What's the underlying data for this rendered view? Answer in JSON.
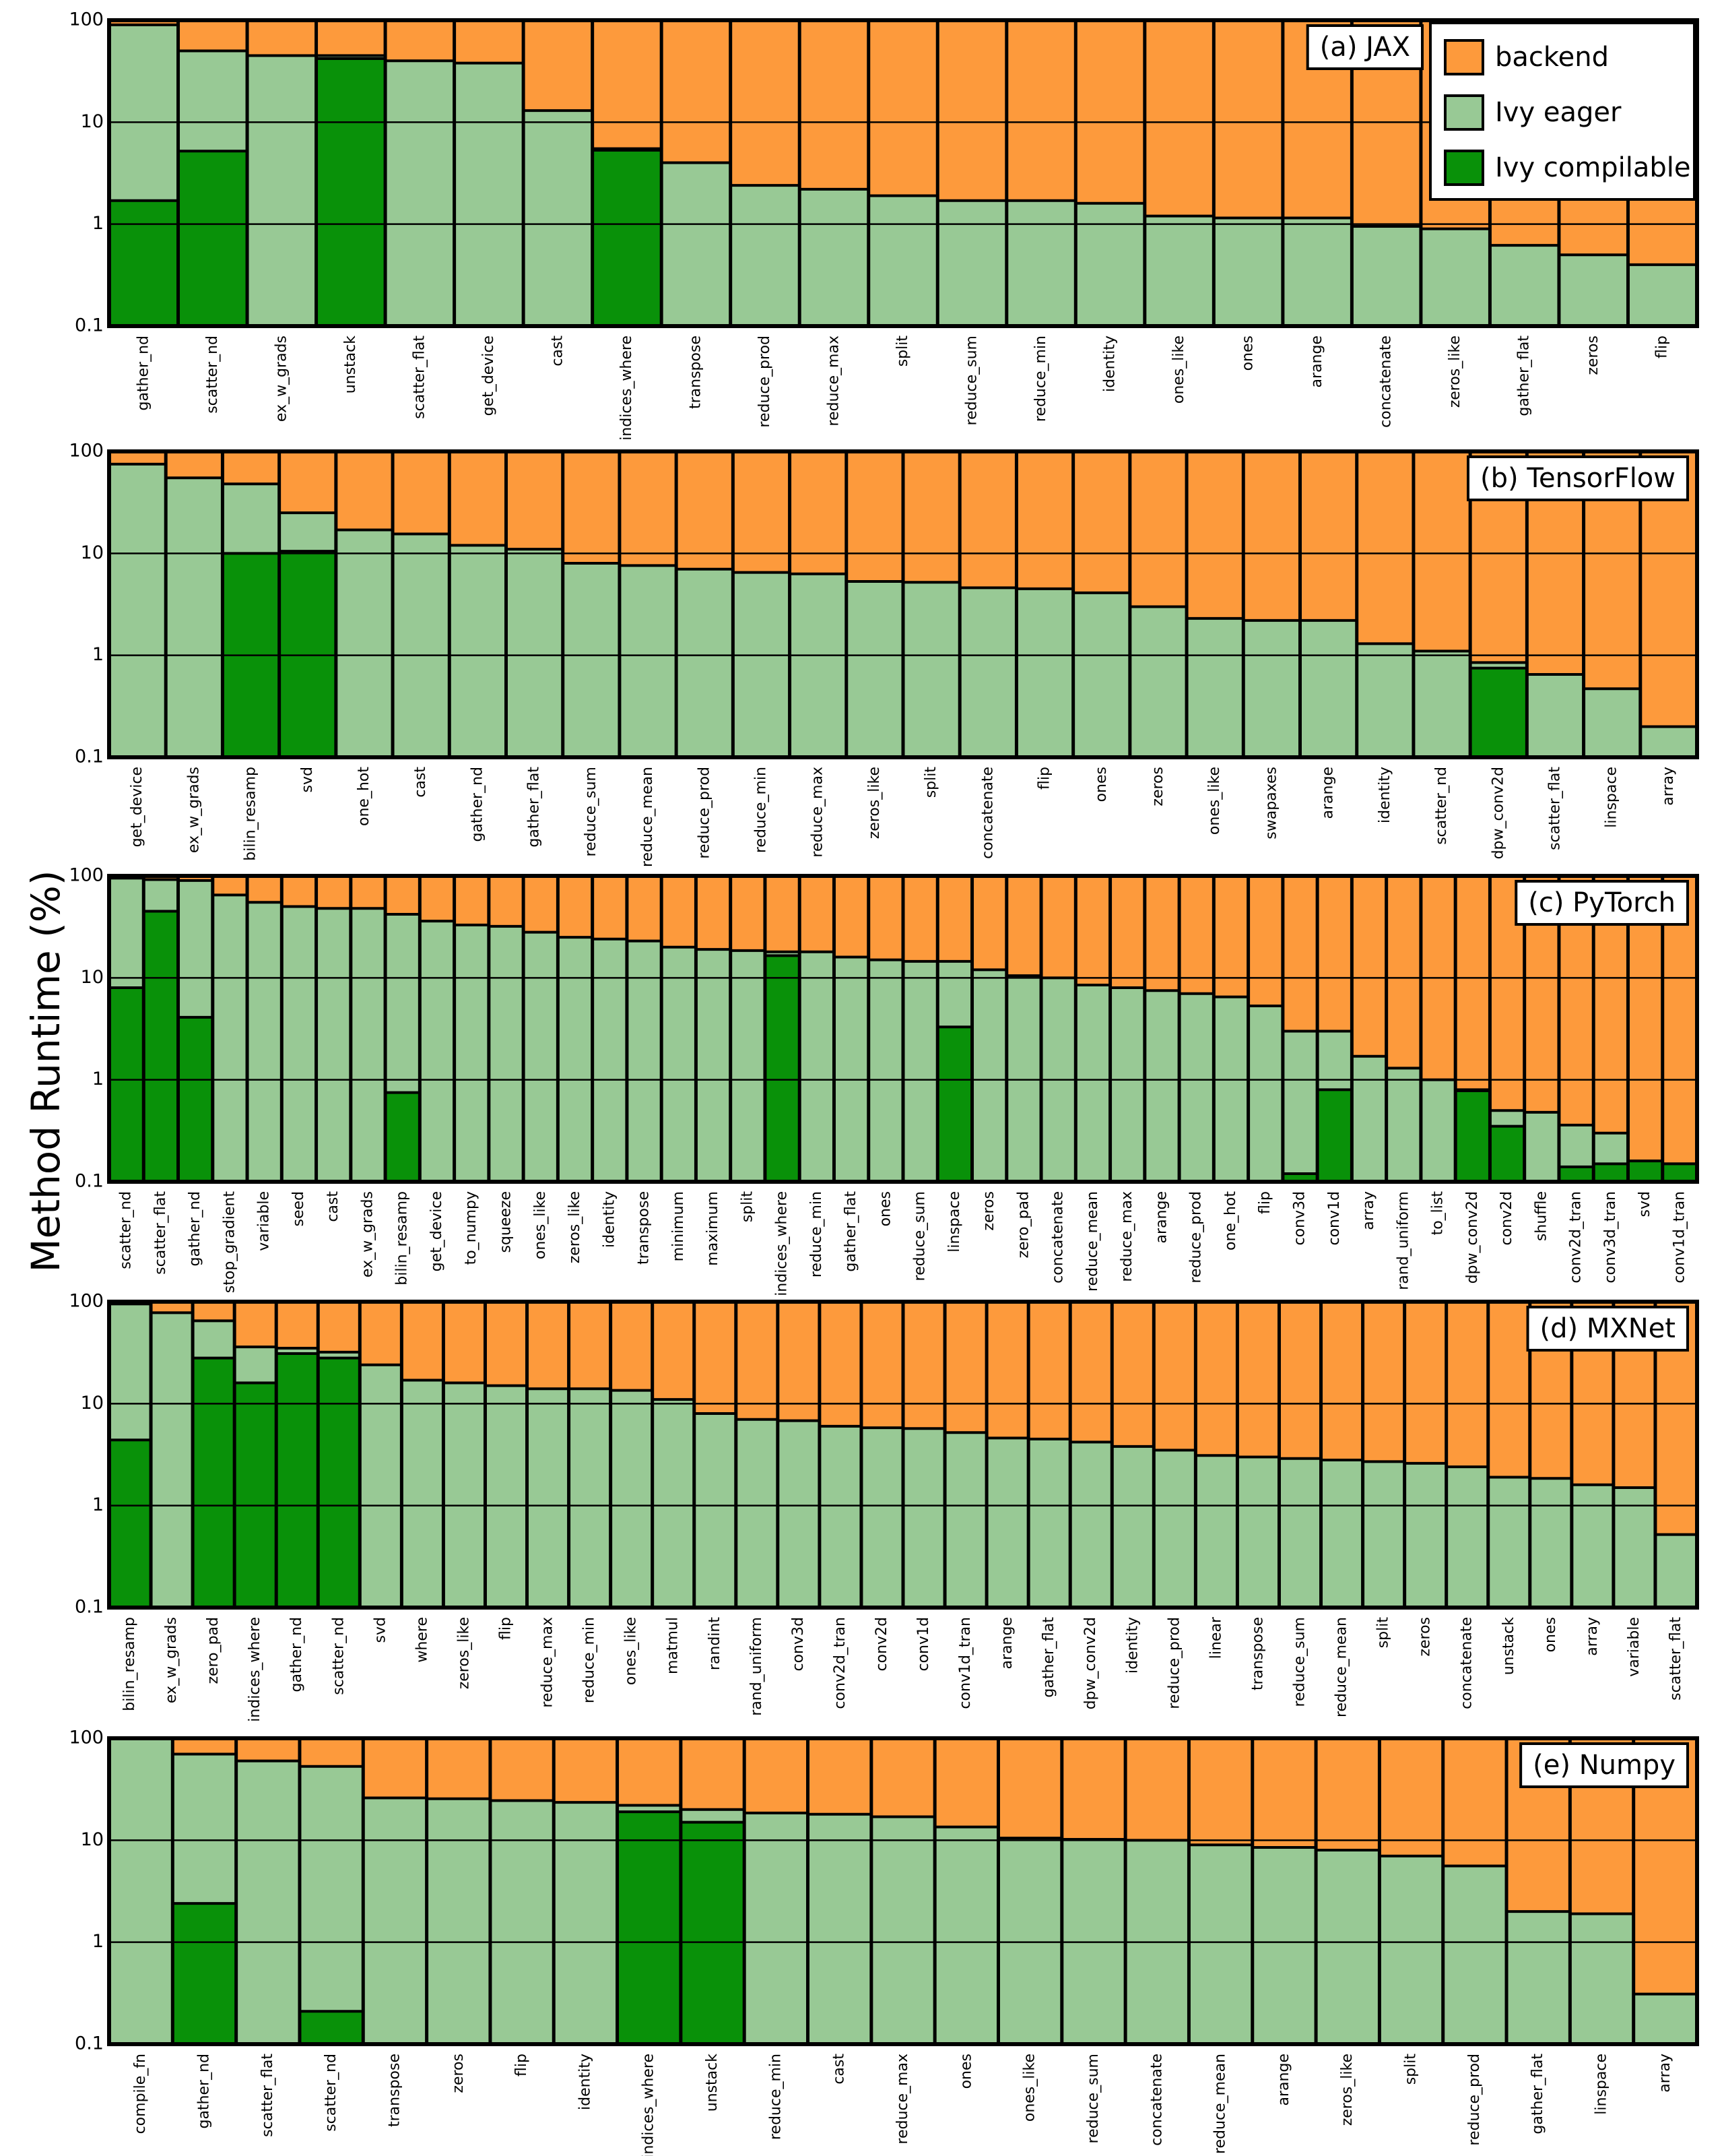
{
  "figure": {
    "ylabel": "Method Runtime (%)",
    "y_ticks": [
      "100",
      "10",
      "1",
      "0.1"
    ],
    "colors": {
      "backend": "#fd9a3c",
      "ivy_eager": "#98c995",
      "ivy_compilable": "#099109",
      "border": "#000000"
    }
  },
  "legend": {
    "entries": [
      {
        "key": "backend",
        "label": "backend"
      },
      {
        "key": "ivy_eager",
        "label": "Ivy eager"
      },
      {
        "key": "ivy_compilable",
        "label": "Ivy compilable"
      }
    ]
  },
  "chart_data": [
    {
      "type": "bar",
      "title": "(a) JAX",
      "yscale": "log",
      "ylim": [
        0.1,
        100
      ],
      "categories": [
        "gather_nd",
        "scatter_nd",
        "ex_w_grads",
        "unstack",
        "scatter_flat",
        "get_device",
        "cast",
        "indices_where",
        "transpose",
        "reduce_prod",
        "reduce_max",
        "split",
        "reduce_sum",
        "reduce_min",
        "identity",
        "ones_like",
        "ones",
        "arange",
        "concatenate",
        "zeros_like",
        "gather_flat",
        "zeros",
        "flip"
      ],
      "ivy_eager_total": [
        90,
        50,
        45,
        45,
        40,
        38,
        13,
        5.5,
        4,
        2.4,
        2.2,
        1.9,
        1.7,
        1.7,
        1.6,
        1.2,
        1.15,
        1.15,
        0.95,
        0.9,
        0.62,
        0.5,
        0.4
      ],
      "ivy_compilable": [
        1.7,
        5.2,
        0,
        42,
        0,
        0,
        0,
        5.3,
        0,
        0,
        0,
        0,
        0,
        0,
        0,
        0,
        0,
        0,
        0,
        0,
        0,
        0,
        0
      ]
    },
    {
      "type": "bar",
      "title": "(b) TensorFlow",
      "yscale": "log",
      "ylim": [
        0.1,
        100
      ],
      "categories": [
        "get_device",
        "ex_w_grads",
        "bilin_resamp",
        "svd",
        "one_hot",
        "cast",
        "gather_nd",
        "gather_flat",
        "reduce_sum",
        "reduce_mean",
        "reduce_prod",
        "reduce_min",
        "reduce_max",
        "zeros_like",
        "split",
        "concatenate",
        "flip",
        "ones",
        "zeros",
        "ones_like",
        "swapaxes",
        "arange",
        "identity",
        "scatter_nd",
        "dpw_conv2d",
        "scatter_flat",
        "linspace",
        "array"
      ],
      "ivy_eager_total": [
        75,
        55,
        48,
        25,
        17,
        15.5,
        12,
        11,
        8,
        7.6,
        7,
        6.5,
        6.3,
        5.3,
        5.2,
        4.6,
        4.5,
        4.1,
        3,
        2.3,
        2.2,
        2.2,
        1.3,
        1.1,
        0.85,
        0.65,
        0.47,
        0.2
      ],
      "ivy_compilable": [
        0,
        0,
        10,
        10.5,
        0,
        0,
        0,
        0,
        0,
        0,
        0,
        0,
        0,
        0,
        0,
        0,
        0,
        0,
        0,
        0,
        0,
        0,
        0,
        0,
        0.75,
        0,
        0,
        0
      ]
    },
    {
      "type": "bar",
      "title": "(c) PyTorch",
      "yscale": "log",
      "ylim": [
        0.1,
        100
      ],
      "categories": [
        "scatter_nd",
        "scatter_flat",
        "gather_nd",
        "stop_gradient",
        "variable",
        "seed",
        "cast",
        "ex_w_grads",
        "bilin_resamp",
        "get_device",
        "to_numpy",
        "squeeze",
        "ones_like",
        "zeros_like",
        "identity",
        "transpose",
        "minimum",
        "maximum",
        "split",
        "indices_where",
        "reduce_min",
        "gather_flat",
        "ones",
        "reduce_sum",
        "linspace",
        "zeros",
        "zero_pad",
        "concatenate",
        "reduce_mean",
        "reduce_max",
        "arange",
        "reduce_prod",
        "one_hot",
        "flip",
        "conv3d",
        "conv1d",
        "array",
        "rand_uniform",
        "to_list",
        "dpw_conv2d",
        "conv2d",
        "shuffle",
        "conv2d_tran",
        "conv3d_tran",
        "svd",
        "conv1d_tran"
      ],
      "ivy_eager_total": [
        95,
        92,
        90,
        65,
        55,
        50,
        48,
        48,
        42,
        36,
        33,
        32,
        28,
        25,
        24,
        23,
        20,
        19,
        18.5,
        18,
        18,
        16,
        15,
        14.5,
        14.5,
        12,
        10.5,
        10,
        8.5,
        8,
        7.5,
        7,
        6.5,
        5.3,
        3,
        3,
        1.7,
        1.3,
        1,
        0.8,
        0.5,
        0.48,
        0.36,
        0.3,
        0.16,
        0.15
      ],
      "ivy_compilable": [
        8,
        45,
        4.1,
        0,
        0,
        0,
        0,
        0,
        0.75,
        0,
        0,
        0,
        0,
        0,
        0,
        0,
        0,
        0,
        0,
        16.5,
        0,
        0,
        0,
        0,
        3.3,
        0,
        0,
        0,
        0,
        0,
        0,
        0,
        0,
        0,
        0.12,
        0.8,
        0,
        0,
        0,
        0.78,
        0.35,
        0,
        0.14,
        0.15,
        0.16,
        0.15
      ]
    },
    {
      "type": "bar",
      "title": "(d) MXNet",
      "yscale": "log",
      "ylim": [
        0.1,
        100
      ],
      "categories": [
        "bilin_resamp",
        "ex_w_grads",
        "zero_pad",
        "indices_where",
        "gather_nd",
        "scatter_nd",
        "svd",
        "where",
        "zeros_like",
        "flip",
        "reduce_max",
        "reduce_min",
        "ones_like",
        "matmul",
        "randint",
        "rand_uniform",
        "conv3d",
        "conv2d_tran",
        "conv2d",
        "conv1d",
        "conv1d_tran",
        "arange",
        "gather_flat",
        "dpw_conv2d",
        "identity",
        "reduce_prod",
        "linear",
        "transpose",
        "reduce_sum",
        "reduce_mean",
        "split",
        "zeros",
        "concatenate",
        "unstack",
        "ones",
        "array",
        "variable",
        "scatter_flat"
      ],
      "ivy_eager_total": [
        95,
        78,
        65,
        36,
        35,
        32,
        24,
        17,
        16,
        15,
        14,
        14,
        13.5,
        11,
        8,
        7,
        6.8,
        6,
        5.8,
        5.7,
        5.2,
        4.6,
        4.5,
        4.2,
        3.8,
        3.5,
        3.1,
        3,
        2.9,
        2.8,
        2.7,
        2.6,
        2.4,
        1.9,
        1.85,
        1.6,
        1.5,
        0.52
      ],
      "ivy_compilable": [
        4.4,
        0,
        28,
        16,
        31,
        28,
        0,
        0,
        0,
        0,
        0,
        0,
        0,
        0,
        0,
        0,
        0,
        0,
        0,
        0,
        0,
        0,
        0,
        0,
        0,
        0,
        0,
        0,
        0,
        0,
        0,
        0,
        0,
        0,
        0,
        0,
        0,
        0
      ]
    },
    {
      "type": "bar",
      "title": "(e) Numpy",
      "yscale": "log",
      "ylim": [
        0.1,
        100
      ],
      "categories": [
        "compile_fn",
        "gather_nd",
        "scatter_flat",
        "scatter_nd",
        "transpose",
        "zeros",
        "flip",
        "identity",
        "indices_where",
        "unstack",
        "reduce_min",
        "cast",
        "reduce_max",
        "ones",
        "ones_like",
        "reduce_sum",
        "concatenate",
        "reduce_mean",
        "arange",
        "zeros_like",
        "split",
        "reduce_prod",
        "gather_flat",
        "linspace",
        "array"
      ],
      "ivy_eager_total": [
        100,
        70,
        60,
        53,
        26,
        25.5,
        24.5,
        23.5,
        22,
        20,
        18.5,
        18,
        17,
        13.5,
        10.5,
        10.2,
        10,
        9,
        8.5,
        8,
        7,
        5.6,
        2,
        1.9,
        0.31
      ],
      "ivy_compilable": [
        0,
        2.4,
        0,
        0.21,
        0,
        0,
        0,
        0,
        19,
        15,
        0,
        0,
        0,
        0,
        0,
        0,
        0,
        0,
        0,
        0,
        0,
        0,
        0,
        0,
        0
      ]
    }
  ]
}
